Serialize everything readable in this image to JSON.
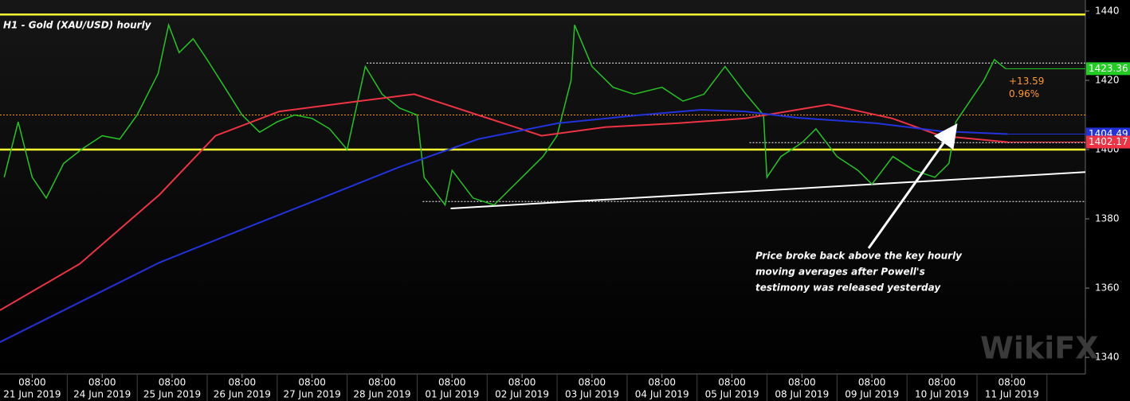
{
  "chart_data": {
    "type": "line",
    "title": "H1 - Gold (XAU/USD) hourly",
    "xlim": [
      -0.46,
      15.05
    ],
    "ylim": [
      1335.2,
      1443.2
    ],
    "yticks": [
      1340,
      1360,
      1380,
      1400,
      1420,
      1440
    ],
    "xticks": [
      {
        "value": 0,
        "label": "08:00",
        "date": "21 Jun 2019"
      },
      {
        "value": 1,
        "label": "08:00",
        "date": "24 Jun 2019"
      },
      {
        "value": 2,
        "label": "08:00",
        "date": "25 Jun 2019"
      },
      {
        "value": 3,
        "label": "08:00",
        "date": "26 Jun 2019"
      },
      {
        "value": 4,
        "label": "08:00",
        "date": "27 Jun 2019"
      },
      {
        "value": 5,
        "label": "08:00",
        "date": "28 Jun 2019"
      },
      {
        "value": 6,
        "label": "08:00",
        "date": "01 Jul 2019"
      },
      {
        "value": 7,
        "label": "08:00",
        "date": "02 Jul 2019"
      },
      {
        "value": 8,
        "label": "08:00",
        "date": "03 Jul 2019"
      },
      {
        "value": 9,
        "label": "08:00",
        "date": "04 Jul 2019"
      },
      {
        "value": 10,
        "label": "08:00",
        "date": "05 Jul 2019"
      },
      {
        "value": 11,
        "label": "08:00",
        "date": "08 Jul 2019"
      },
      {
        "value": 12,
        "label": "08:00",
        "date": "09 Jul 2019"
      },
      {
        "value": 13,
        "label": "08:00",
        "date": "10 Jul 2019"
      },
      {
        "value": 14,
        "label": "08:00",
        "date": "11 Jul 2019"
      }
    ],
    "series": [
      {
        "color": "#25c425",
        "width": 1.5,
        "x": [
          -0.4,
          -0.2,
          0,
          0.2,
          0.45,
          0.7,
          1.0,
          1.25,
          1.5,
          1.8,
          1.95,
          2.1,
          2.3,
          2.5,
          2.75,
          3.0,
          3.25,
          3.5,
          3.75,
          4.0,
          4.25,
          4.5,
          4.76,
          5.0,
          5.25,
          5.5,
          5.6,
          5.9,
          6.0,
          6.3,
          6.6,
          6.9,
          7.0,
          7.3,
          7.5,
          7.7,
          7.75,
          8.0,
          8.3,
          8.6,
          9.0,
          9.3,
          9.6,
          9.9,
          10.2,
          10.45,
          10.5,
          10.7,
          11.0,
          11.2,
          11.5,
          11.8,
          12.0,
          12.3,
          12.6,
          12.9,
          13.1,
          13.2,
          13.4,
          13.6,
          13.75,
          13.91
        ],
        "values": [
          1392,
          1408,
          1392,
          1386,
          1396,
          1400,
          1404,
          1403,
          1410,
          1422,
          1436,
          1428,
          1432,
          1426,
          1418,
          1410,
          1405,
          1408,
          1410,
          1409,
          1406,
          1400,
          1424,
          1416,
          1412,
          1410,
          1392,
          1384,
          1394,
          1386,
          1384,
          1390,
          1392,
          1398,
          1404,
          1420,
          1436,
          1424,
          1418,
          1416,
          1418,
          1414,
          1416,
          1424,
          1416,
          1410,
          1392,
          1398,
          1402,
          1406,
          1398,
          1394,
          1390,
          1398,
          1394,
          1392,
          1396,
          1408,
          1414,
          1420,
          1426,
          1423.36
        ]
      },
      {
        "color": "#ee3344",
        "width": 2,
        "x": [
          -0.46,
          0.68,
          1.82,
          2.62,
          3.53,
          4.67,
          5.46,
          6.37,
          7.28,
          8.19,
          9.22,
          10.19,
          11.38,
          12.29,
          12.98,
          13.94
        ],
        "values": [
          1353.6,
          1367,
          1387,
          1404,
          1411,
          1414,
          1416,
          1410,
          1404,
          1406.5,
          1407.6,
          1409,
          1413,
          1409,
          1404,
          1402.17
        ]
      },
      {
        "color": "#2233dd",
        "width": 2,
        "x": [
          -0.46,
          0.68,
          1.82,
          2.96,
          4.1,
          5.24,
          6.37,
          7.51,
          8.65,
          9.56,
          10.19,
          10.93,
          12.06,
          12.98,
          13.94
        ],
        "values": [
          1344.4,
          1355.9,
          1367.4,
          1376.6,
          1385.7,
          1394.9,
          1403,
          1407.6,
          1409.9,
          1411.5,
          1411,
          1409.2,
          1407.6,
          1405.3,
          1404.49
        ]
      }
    ],
    "levels": [
      {
        "value": 1439,
        "color": "#ffff33",
        "style": "solid",
        "from": -0.46
      },
      {
        "value": 1400,
        "color": "#ffff33",
        "style": "solid",
        "from": -0.46
      },
      {
        "value": 1410,
        "color": "#ff9900",
        "style": "dotted",
        "from": -0.46
      },
      {
        "value": 1425,
        "color": "#ffffff",
        "style": "dotted",
        "from": 4.78
      },
      {
        "value": 1402,
        "color": "#ffffff",
        "style": "dotted",
        "from": 10.25
      },
      {
        "value": 1385,
        "color": "#ffffff",
        "style": "dotted",
        "from": 5.58
      }
    ],
    "trendline": {
      "color": "#ffffff",
      "x": [
        5.98,
        15.05
      ],
      "y": [
        1383,
        1393.5
      ]
    },
    "price_tags": [
      {
        "value": 1423.36,
        "color": "#22cc22"
      },
      {
        "value": 1404.49,
        "color": "#2233dd"
      },
      {
        "value": 1402.17,
        "color": "#ee3344"
      }
    ],
    "change": {
      "text": "+13.59",
      "percent": "0.96%",
      "color": "#ff9933"
    },
    "annotation": [
      "Price broke back above the key hourly",
      "moving averages after Powell's",
      "testimony was released yesterday"
    ],
    "watermark": "WikiFX"
  }
}
